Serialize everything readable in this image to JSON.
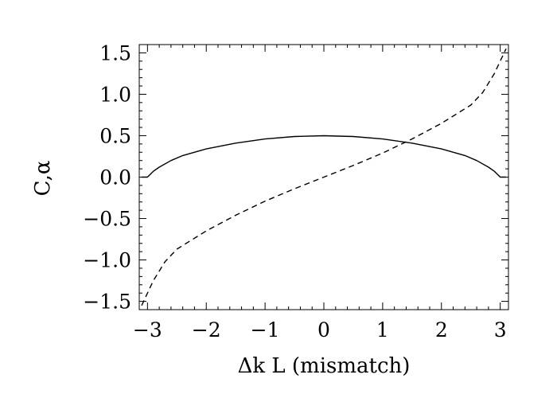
{
  "chart_data": {
    "type": "line",
    "xlabel": "Δk L (mismatch)",
    "ylabel": "C,α",
    "xlim": [
      -3.14,
      3.14
    ],
    "ylim": [
      -1.6,
      1.6
    ],
    "xticks": [
      -3,
      -2,
      -1,
      0,
      1,
      2,
      3
    ],
    "xtick_labels": [
      "−3",
      "−2",
      "−1",
      "0",
      "1",
      "2",
      "3"
    ],
    "yticks": [
      -1.5,
      -1.0,
      -0.5,
      0.0,
      0.5,
      1.0,
      1.5
    ],
    "ytick_labels": [
      "−1.5",
      "−1.0",
      "−0.5",
      "0.0",
      "0.5",
      "1.0",
      "1.5"
    ],
    "grid": false,
    "series": [
      {
        "style": "solid",
        "x": [
          -3.1,
          -3.0,
          -2.9,
          -2.8,
          -2.6,
          -2.4,
          -2.0,
          -1.5,
          -1.0,
          -0.5,
          0.0,
          0.5,
          1.0,
          1.5,
          2.0,
          2.4,
          2.6,
          2.8,
          2.9,
          3.0,
          3.1
        ],
        "y": [
          0.0,
          0.0,
          0.07,
          0.12,
          0.2,
          0.26,
          0.34,
          0.41,
          0.46,
          0.49,
          0.5,
          0.49,
          0.46,
          0.41,
          0.34,
          0.26,
          0.2,
          0.12,
          0.07,
          0.0,
          0.0
        ]
      },
      {
        "style": "dashed",
        "x": [
          -3.1,
          -2.9,
          -2.7,
          -2.5,
          -2.0,
          -1.5,
          -1.0,
          -0.5,
          0.0,
          0.5,
          1.0,
          1.5,
          2.0,
          2.5,
          2.7,
          2.9,
          3.1
        ],
        "y": [
          -1.55,
          -1.25,
          -1.02,
          -0.87,
          -0.65,
          -0.46,
          -0.29,
          -0.14,
          0.0,
          0.14,
          0.29,
          0.46,
          0.65,
          0.87,
          1.02,
          1.25,
          1.55
        ]
      }
    ]
  }
}
